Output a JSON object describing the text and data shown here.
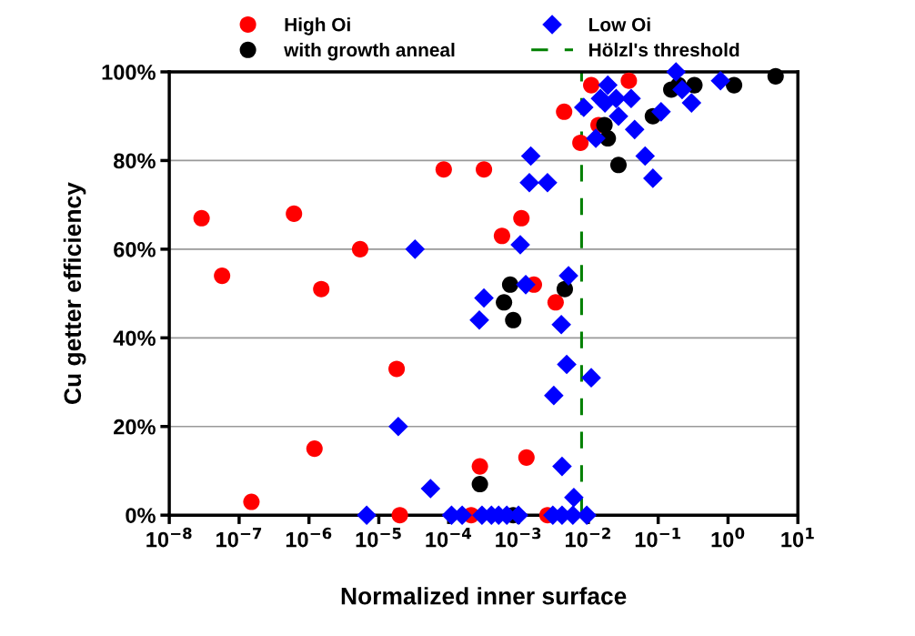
{
  "chart_data": {
    "type": "scatter",
    "xlabel": "Normalized inner surface",
    "ylabel": "Cu getter efficiency",
    "log": "x",
    "xlim": [
      1e-08,
      10
    ],
    "xticks": [
      {
        "value": 1e-08,
        "label": "10$^{−8}$"
      },
      {
        "value": 1e-07,
        "label": "10$^{−7}$"
      },
      {
        "value": 1e-06,
        "label": "10$^{−6}$"
      },
      {
        "value": 1e-05,
        "label": "10$^{−5}$"
      },
      {
        "value": 0.0001,
        "label": "10$^{−4}$"
      },
      {
        "value": 0.001,
        "label": "10$^{−3}$"
      },
      {
        "value": 0.01,
        "label": "10$^{−2}$"
      },
      {
        "value": 0.1,
        "label": "10$^{−1}$"
      },
      {
        "value": 1,
        "label": "10$^{0}$"
      },
      {
        "value": 10,
        "label": "10$^{1}$"
      }
    ],
    "ylim": [
      0,
      100
    ],
    "yticks": [
      {
        "value": 0,
        "label": "0%"
      },
      {
        "value": 20,
        "label": "20%"
      },
      {
        "value": 40,
        "label": "40%"
      },
      {
        "value": 60,
        "label": "60%"
      },
      {
        "value": 80,
        "label": "80%"
      },
      {
        "value": 100,
        "label": "100%"
      }
    ],
    "grid": "y",
    "legend": "top",
    "ref_lines": [
      {
        "axis": "x",
        "value": 0.008,
        "label": "Hölzl's threshold",
        "color": "#008000",
        "line_style": "dashed"
      }
    ],
    "series": [
      {
        "name": "High Oi",
        "color": "#ff0000",
        "marker": "circle",
        "x": [
          2.9e-08,
          5.7e-08,
          1.5e-07,
          6.1e-07,
          1.5e-06,
          5.4e-06,
          1.2e-06,
          1.8e-05,
          2e-05,
          8.5e-05,
          0.00032,
          0.00028,
          0.00021,
          0.0011,
          0.00058,
          0.00166,
          0.0034,
          0.0013,
          0.0026,
          0.0045,
          0.0077,
          0.011,
          0.014,
          0.038
        ],
        "values": [
          67,
          54,
          3,
          68,
          51,
          60,
          15,
          33,
          0,
          78,
          78,
          11,
          0,
          67,
          63,
          52,
          48,
          13,
          0,
          91,
          84,
          97,
          88,
          98
        ]
      },
      {
        "name": "with growth anneal",
        "color": "#000000",
        "marker": "circle",
        "x": [
          0.00028,
          0.00084,
          0.00076,
          0.00062,
          0.00084,
          0.0046,
          0.017,
          0.019,
          0.027,
          0.084,
          0.154,
          0.196,
          0.33,
          1.22,
          4.8
        ],
        "values": [
          7,
          0,
          52,
          48,
          44,
          51,
          88,
          85,
          79,
          90,
          96,
          97,
          97,
          97,
          99
        ]
      },
      {
        "name": "Low Oi",
        "color": "#0000ff",
        "marker": "diamond",
        "x": [
          3.3e-05,
          1.9e-05,
          5.5e-05,
          6.7e-06,
          0.00011,
          0.000156,
          0.0003,
          0.00041,
          0.00052,
          0.00068,
          0.001,
          0.0031,
          0.0042,
          0.006,
          0.0095,
          0.0062,
          0.0042,
          0.011,
          0.0049,
          0.0032,
          0.000275,
          0.00032,
          0.00127,
          0.0041,
          0.0052,
          0.00106,
          0.00143,
          0.0026,
          0.0015,
          0.0086,
          0.0128,
          0.0149,
          0.019,
          0.0173,
          0.025,
          0.027,
          0.041,
          0.046,
          0.065,
          0.084,
          0.11,
          0.18,
          0.22,
          0.3,
          0.78
        ],
        "values": [
          60,
          20,
          6,
          0,
          0,
          0,
          0,
          0,
          0,
          0,
          0,
          0,
          0,
          0,
          0,
          4,
          11,
          31,
          34,
          27,
          44,
          49,
          52,
          43,
          54,
          61,
          75,
          75,
          81,
          92,
          85,
          94,
          97,
          93,
          94,
          90,
          94,
          87,
          81,
          76,
          91,
          100,
          96,
          93,
          98
        ]
      }
    ]
  }
}
